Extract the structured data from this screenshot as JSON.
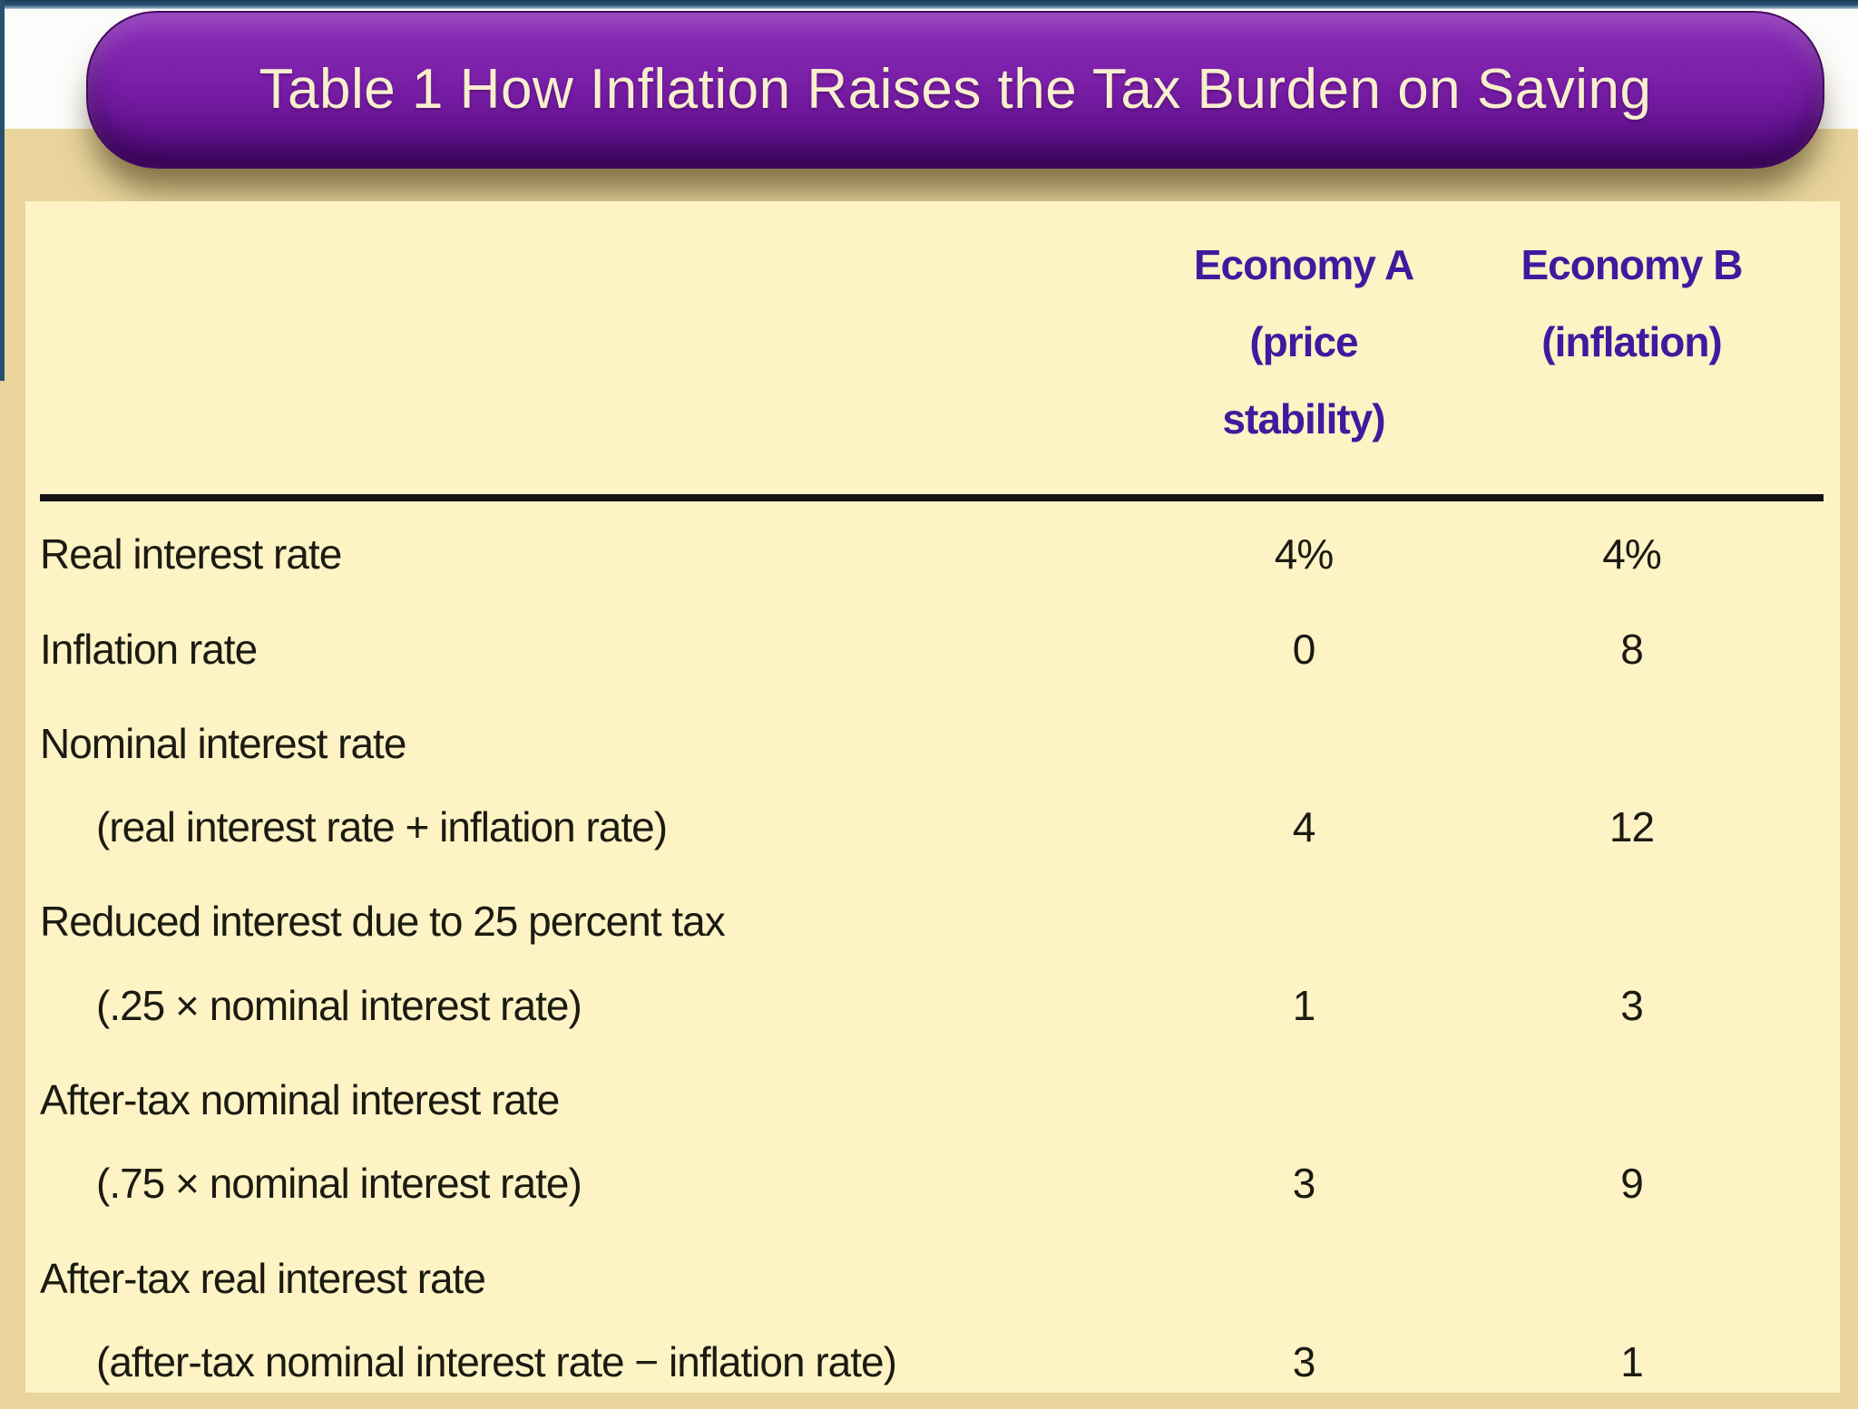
{
  "title": "Table 1 How Inflation Raises the Tax Burden on Saving",
  "table": {
    "columns": [
      {
        "line1": "Economy A",
        "line2": "(price stability)"
      },
      {
        "line1": "Economy B",
        "line2": "(inflation)"
      }
    ],
    "rows": [
      {
        "label": "Real interest rate",
        "sub": "",
        "a": "4%",
        "b": "4%"
      },
      {
        "label": "Inflation rate",
        "sub": "",
        "a": "0",
        "b": "8"
      },
      {
        "label": "Nominal interest rate",
        "sub": "(real interest rate + inflation rate)",
        "a": "4",
        "b": "12"
      },
      {
        "label": "Reduced interest due to 25 percent tax",
        "sub": "(.25 × nominal interest rate)",
        "a": "1",
        "b": "3"
      },
      {
        "label": "After-tax nominal interest rate",
        "sub": "(.75 × nominal interest rate)",
        "a": "3",
        "b": "9"
      },
      {
        "label": "After-tax real interest rate",
        "sub": "(after-tax nominal interest rate − inflation rate)",
        "a": "3",
        "b": "1"
      }
    ]
  },
  "colors": {
    "banner_purple": "#7d21aa",
    "banner_text_cream": "#f8efcd",
    "header_purple": "#3e1b9e",
    "panel_yellow": "#fdf3c5",
    "outer_beige": "#e9d59c",
    "top_strip_navy": "#2a5273",
    "rule_black": "#141414",
    "body_text": "#1c1b12"
  }
}
